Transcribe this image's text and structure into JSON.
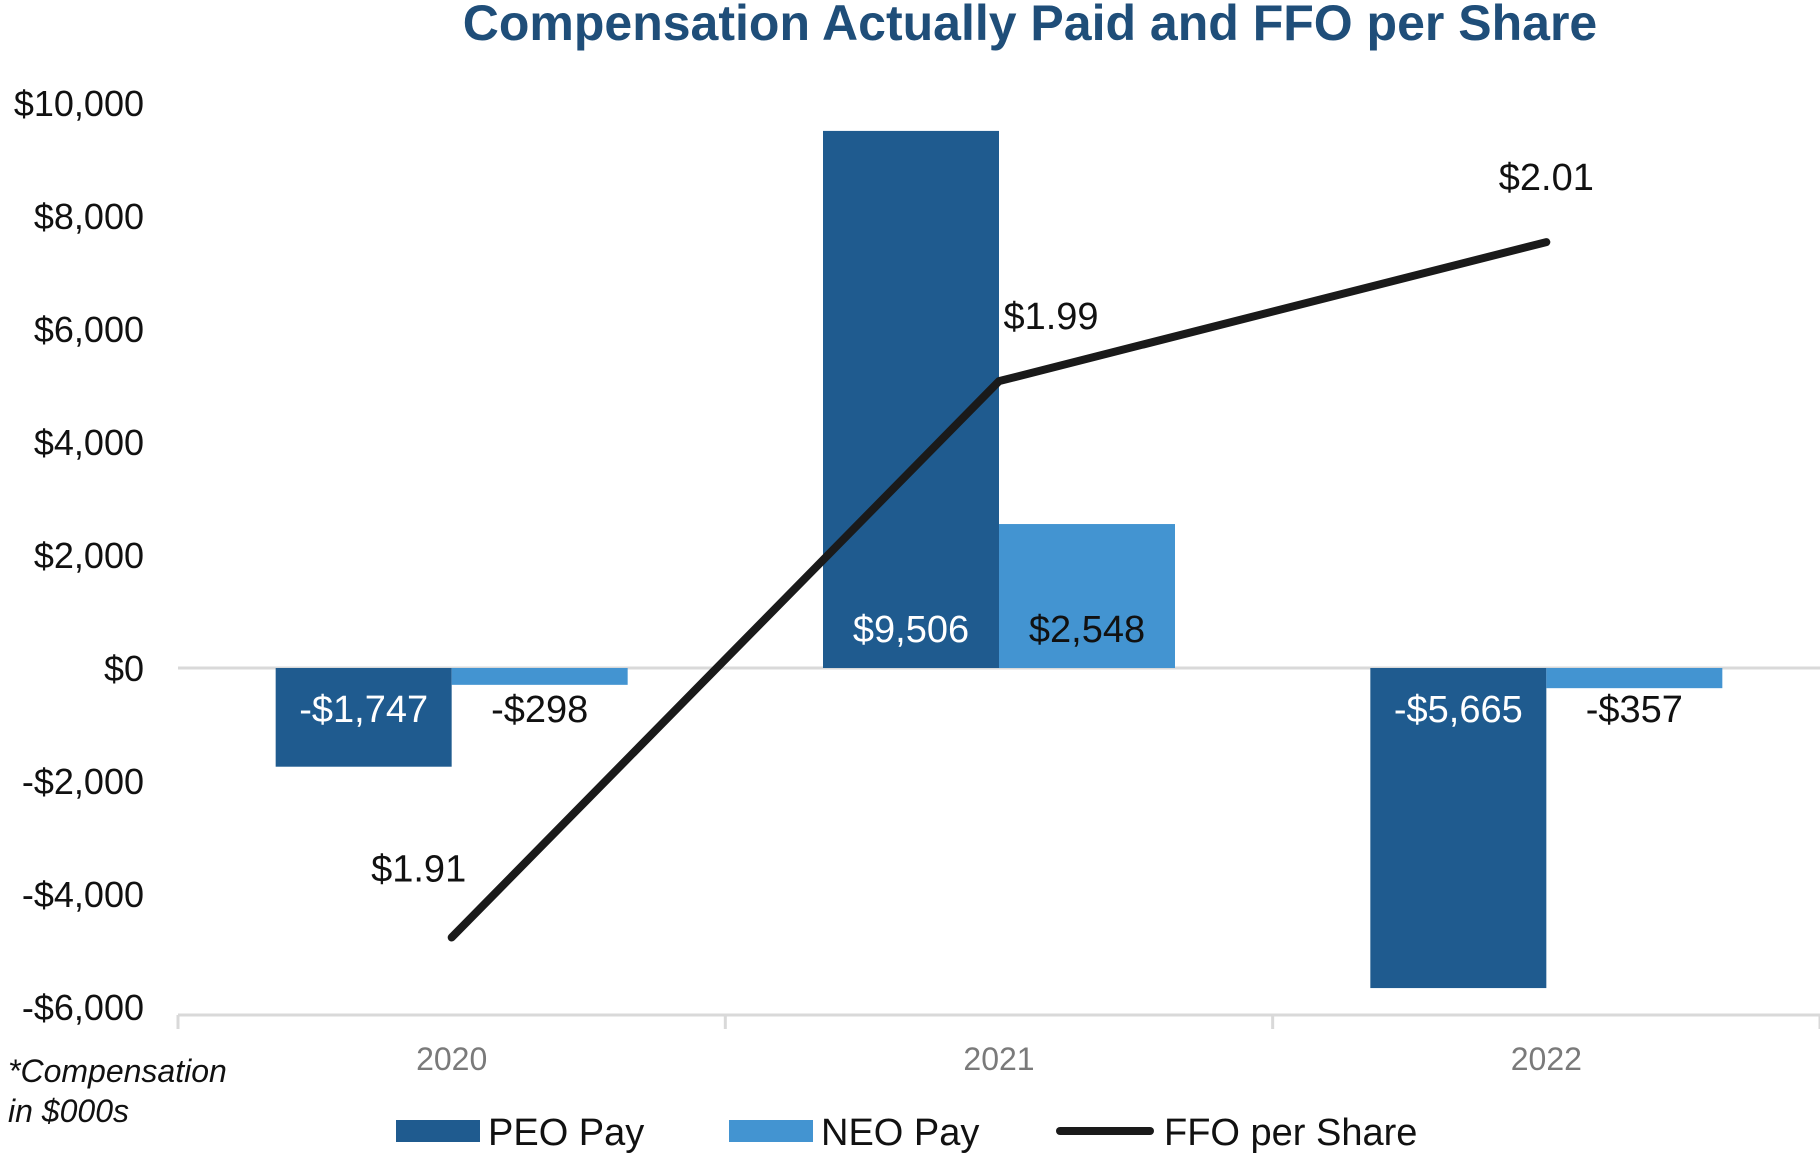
{
  "chart_data": {
    "type": "bar",
    "title": "Compensation Actually Paid and FFO per Share",
    "categories": [
      "2020",
      "2021",
      "2022"
    ],
    "series": [
      {
        "name": "PEO Pay",
        "kind": "bar",
        "color": "#1f5b8f",
        "values": [
          -1747,
          9506,
          -5665
        ],
        "labels": [
          "-$1,747",
          "$9,506",
          "-$5,665"
        ]
      },
      {
        "name": "NEO Pay",
        "kind": "bar",
        "color": "#4394d1",
        "values": [
          -298,
          2548,
          -357
        ],
        "labels": [
          "-$298",
          "$2,548",
          "-$357"
        ]
      },
      {
        "name": "FFO per Share",
        "kind": "line",
        "color": "#1a1a1a",
        "values": [
          1.91,
          1.99,
          2.01
        ],
        "labels": [
          "$1.91",
          "$1.99",
          "$2.01"
        ]
      }
    ],
    "ylim": [
      -6000,
      10000
    ],
    "yticks": [
      10000,
      8000,
      6000,
      4000,
      2000,
      0,
      -2000,
      -4000,
      -6000
    ],
    "ytick_labels": [
      "$10,000",
      "$8,000",
      "$6,000",
      "$4,000",
      "$2,000",
      "$0",
      "-$2,000",
      "-$4,000",
      "-$6,000"
    ],
    "line_ylim": [
      1.9,
      2.03
    ],
    "legend": "bottom",
    "note_lines": [
      "*Compensation",
      "in $000s"
    ]
  }
}
